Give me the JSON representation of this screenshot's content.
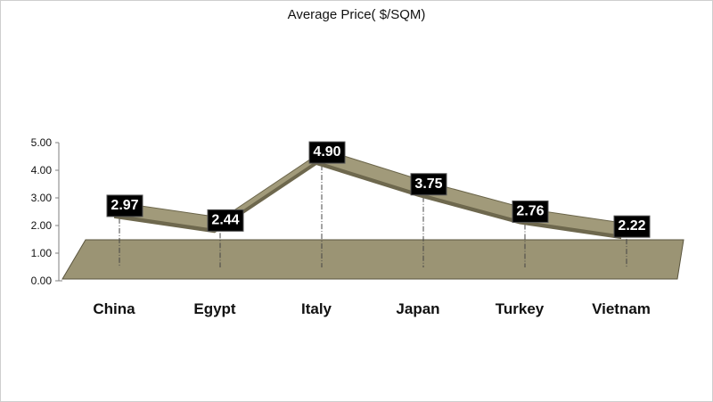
{
  "chart_data": {
    "type": "line",
    "title": "Average Price( $/SQM)",
    "categories": [
      "China",
      "Egypt",
      "Italy",
      "Japan",
      "Turkey",
      "Vietnam"
    ],
    "series": [
      {
        "values": [
          2.97,
          2.44,
          4.9,
          3.75,
          2.76,
          2.22
        ]
      }
    ],
    "data_labels": [
      "2.97",
      "2.44",
      "4.90",
      "3.75",
      "2.76",
      "2.22"
    ],
    "y_ticks": [
      "0.00",
      "1.00",
      "2.00",
      "3.00",
      "4.00",
      "5.00"
    ],
    "ylim": [
      0,
      5
    ],
    "grid": false,
    "legend": "none",
    "three_d": true,
    "colors": {
      "ribbon": "#a19a7a",
      "ribbon_edge": "#6b654a",
      "floor": "#9b9474",
      "label_bg": "#000000",
      "label_text": "#ffffff"
    }
  }
}
